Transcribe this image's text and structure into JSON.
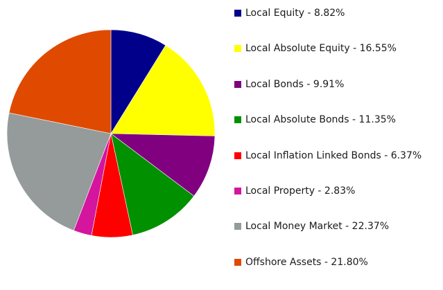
{
  "chart_data": {
    "type": "pie",
    "title": "",
    "start_angle_deg": 0,
    "direction": "clockwise",
    "slices": [
      {
        "label": "Local Equity - 8.82%",
        "name": "Local Equity",
        "value": 8.82,
        "color": "#00008b"
      },
      {
        "label": "Local Absolute Equity -  16.55%",
        "name": "Local Absolute Equity",
        "value": 16.55,
        "color": "#ffff00"
      },
      {
        "label": "Local Bonds -  9.91%",
        "name": "Local Bonds",
        "value": 9.91,
        "color": "#800080"
      },
      {
        "label": "Local Absolute Bonds -  11.35%",
        "name": "Local Absolute Bonds",
        "value": 11.35,
        "color": "#009000"
      },
      {
        "label": "Local Inflation Linked Bonds -  6.37%",
        "name": "Local Inflation Linked Bonds",
        "value": 6.37,
        "color": "#ff0000"
      },
      {
        "label": "Local Property -  2.83%",
        "name": "Local Property",
        "value": 2.83,
        "color": "#d4159e"
      },
      {
        "label": "Local Money Market - 22.37%",
        "name": "Local Money Market",
        "value": 22.37,
        "color": "#959a9a"
      },
      {
        "label": "Offshore Assets -  21.80%",
        "name": "Offshore Assets",
        "value": 21.8,
        "color": "#df4a00"
      }
    ],
    "legend_position": "right",
    "grid": false
  }
}
